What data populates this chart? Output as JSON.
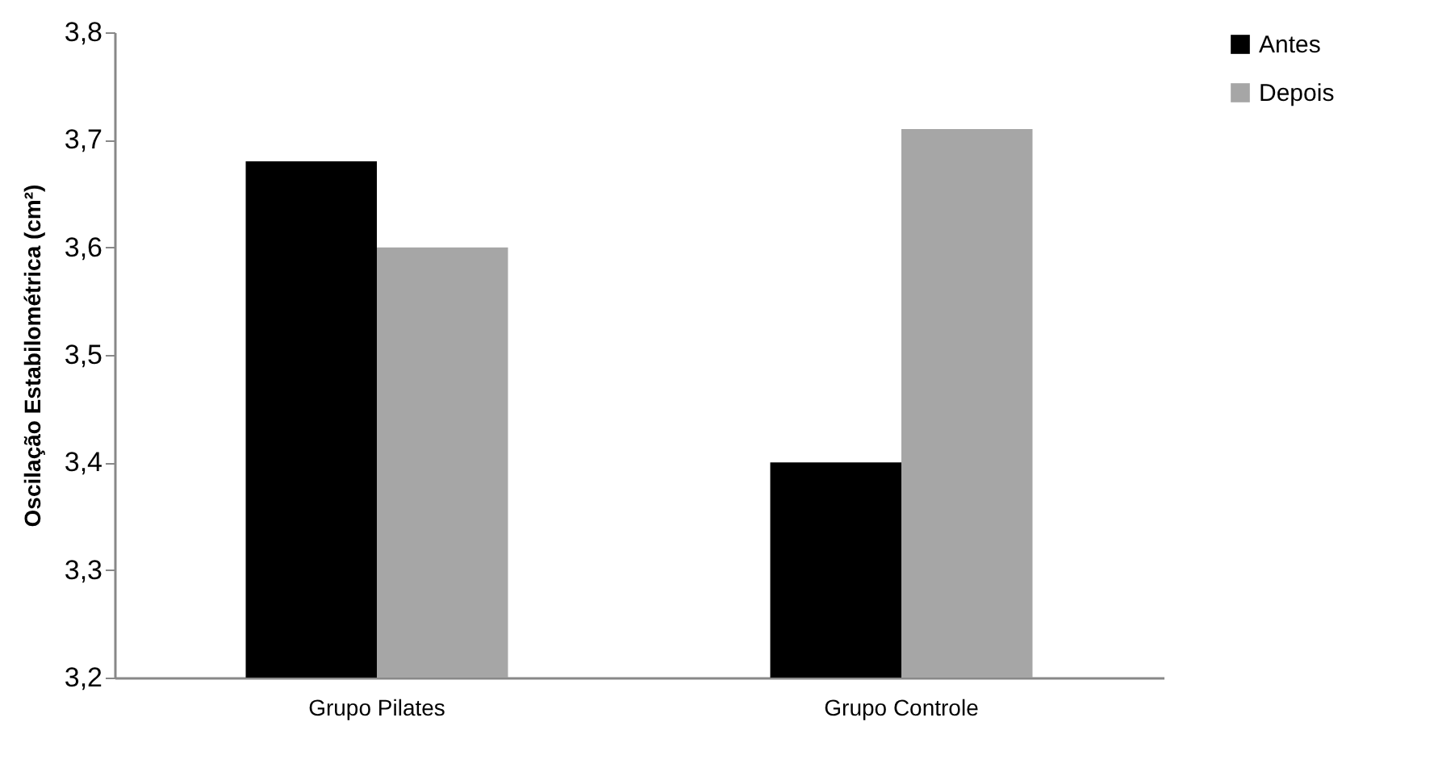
{
  "chart_data": {
    "type": "bar",
    "ylabel": "Oscilação Estabilométrica (cm²)",
    "categories": [
      "Grupo Pilates",
      "Grupo Controle"
    ],
    "series": [
      {
        "name": "Antes",
        "color": "#000000",
        "values": [
          3.68,
          3.4
        ]
      },
      {
        "name": "Depois",
        "color": "#a6a6a6",
        "values": [
          3.6,
          3.71
        ]
      }
    ],
    "ylim": [
      3.2,
      3.8
    ],
    "yticks": [
      {
        "value": 3.2,
        "label": "3,2"
      },
      {
        "value": 3.3,
        "label": "3,3"
      },
      {
        "value": 3.4,
        "label": "3,4"
      },
      {
        "value": 3.5,
        "label": "3,5"
      },
      {
        "value": 3.6,
        "label": "3,6"
      },
      {
        "value": 3.7,
        "label": "3,7"
      },
      {
        "value": 3.8,
        "label": "3,8"
      }
    ],
    "grid": false,
    "legend": "right"
  }
}
